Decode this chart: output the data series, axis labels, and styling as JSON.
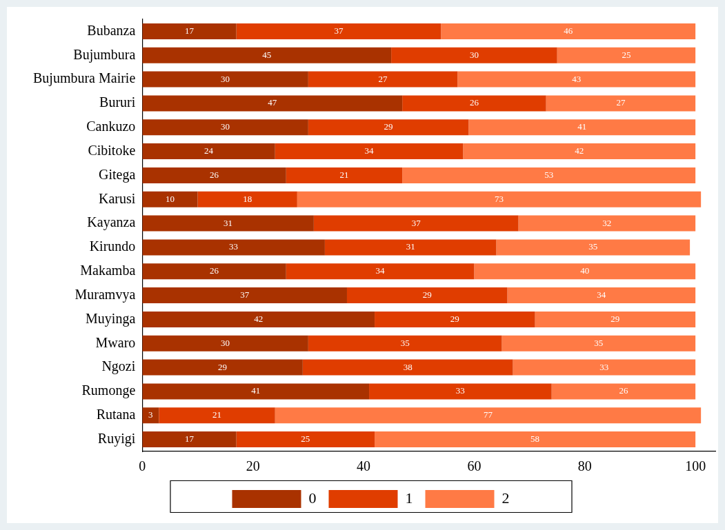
{
  "chart_data": {
    "type": "bar",
    "orientation": "horizontal",
    "stacked": true,
    "data_labels": true,
    "legend": "bottom",
    "grid": false,
    "categories": [
      "Bubanza",
      "Bujumbura",
      "Bujumbura Mairie",
      "Bururi",
      "Cankuzo",
      "Cibitoke",
      "Gitega",
      "Karusi",
      "Kayanza",
      "Kirundo",
      "Makamba",
      "Muramvya",
      "Muyinga",
      "Mwaro",
      "Ngozi",
      "Rumonge",
      "Rutana",
      "Ruyigi"
    ],
    "series": [
      {
        "name": "0",
        "color": "#a93200",
        "values": [
          17,
          45,
          30,
          47,
          30,
          24,
          26,
          10,
          31,
          33,
          26,
          37,
          42,
          30,
          29,
          41,
          3,
          17
        ]
      },
      {
        "name": "1",
        "color": "#e03d00",
        "values": [
          37,
          30,
          27,
          26,
          29,
          34,
          21,
          18,
          37,
          31,
          34,
          29,
          29,
          35,
          38,
          33,
          21,
          25
        ]
      },
      {
        "name": "2",
        "color": "#ff7a45",
        "values": [
          46,
          25,
          43,
          27,
          41,
          42,
          53,
          73,
          32,
          35,
          40,
          34,
          29,
          35,
          33,
          26,
          77,
          58
        ]
      }
    ],
    "xlim": [
      0,
      103.6
    ],
    "xticks": [
      0,
      20,
      40,
      60,
      80,
      100
    ]
  }
}
